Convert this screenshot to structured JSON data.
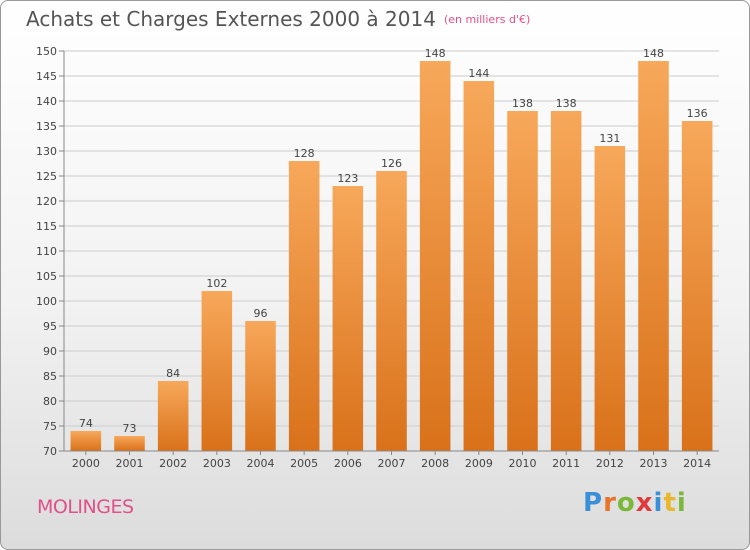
{
  "title_main": "Achats et Charges Externes 2000 à 2014",
  "title_unit": "(en milliers d'€)",
  "commune": "MOLINGES",
  "brand": {
    "letters": [
      "P",
      "r",
      "o",
      "x",
      "i",
      "t",
      "i"
    ],
    "colors": [
      "#3a8fd8",
      "#e8732a",
      "#7bb83a",
      "#e03a3a",
      "#3a8fd8",
      "#e8b82a",
      "#7bb83a"
    ]
  },
  "colors": {
    "bar_light": "#f7a85a",
    "bar_dark": "#d9711a",
    "grid": "#cccccc",
    "axis": "#888888"
  },
  "chart_data": {
    "type": "bar",
    "title": "Achats et Charges Externes 2000 à 2014",
    "subtitle": "(en milliers d'€)",
    "xlabel": "",
    "ylabel": "",
    "categories": [
      "2000",
      "2001",
      "2002",
      "2003",
      "2004",
      "2005",
      "2006",
      "2007",
      "2008",
      "2009",
      "2010",
      "2011",
      "2012",
      "2013",
      "2014"
    ],
    "values": [
      74,
      73,
      84,
      102,
      96,
      128,
      123,
      126,
      148,
      144,
      138,
      138,
      131,
      148,
      136
    ],
    "ylim": [
      70,
      150
    ],
    "yticks": [
      70,
      75,
      80,
      85,
      90,
      95,
      100,
      105,
      110,
      115,
      120,
      125,
      130,
      135,
      140,
      145,
      150
    ],
    "grid": true,
    "legend": "none"
  }
}
